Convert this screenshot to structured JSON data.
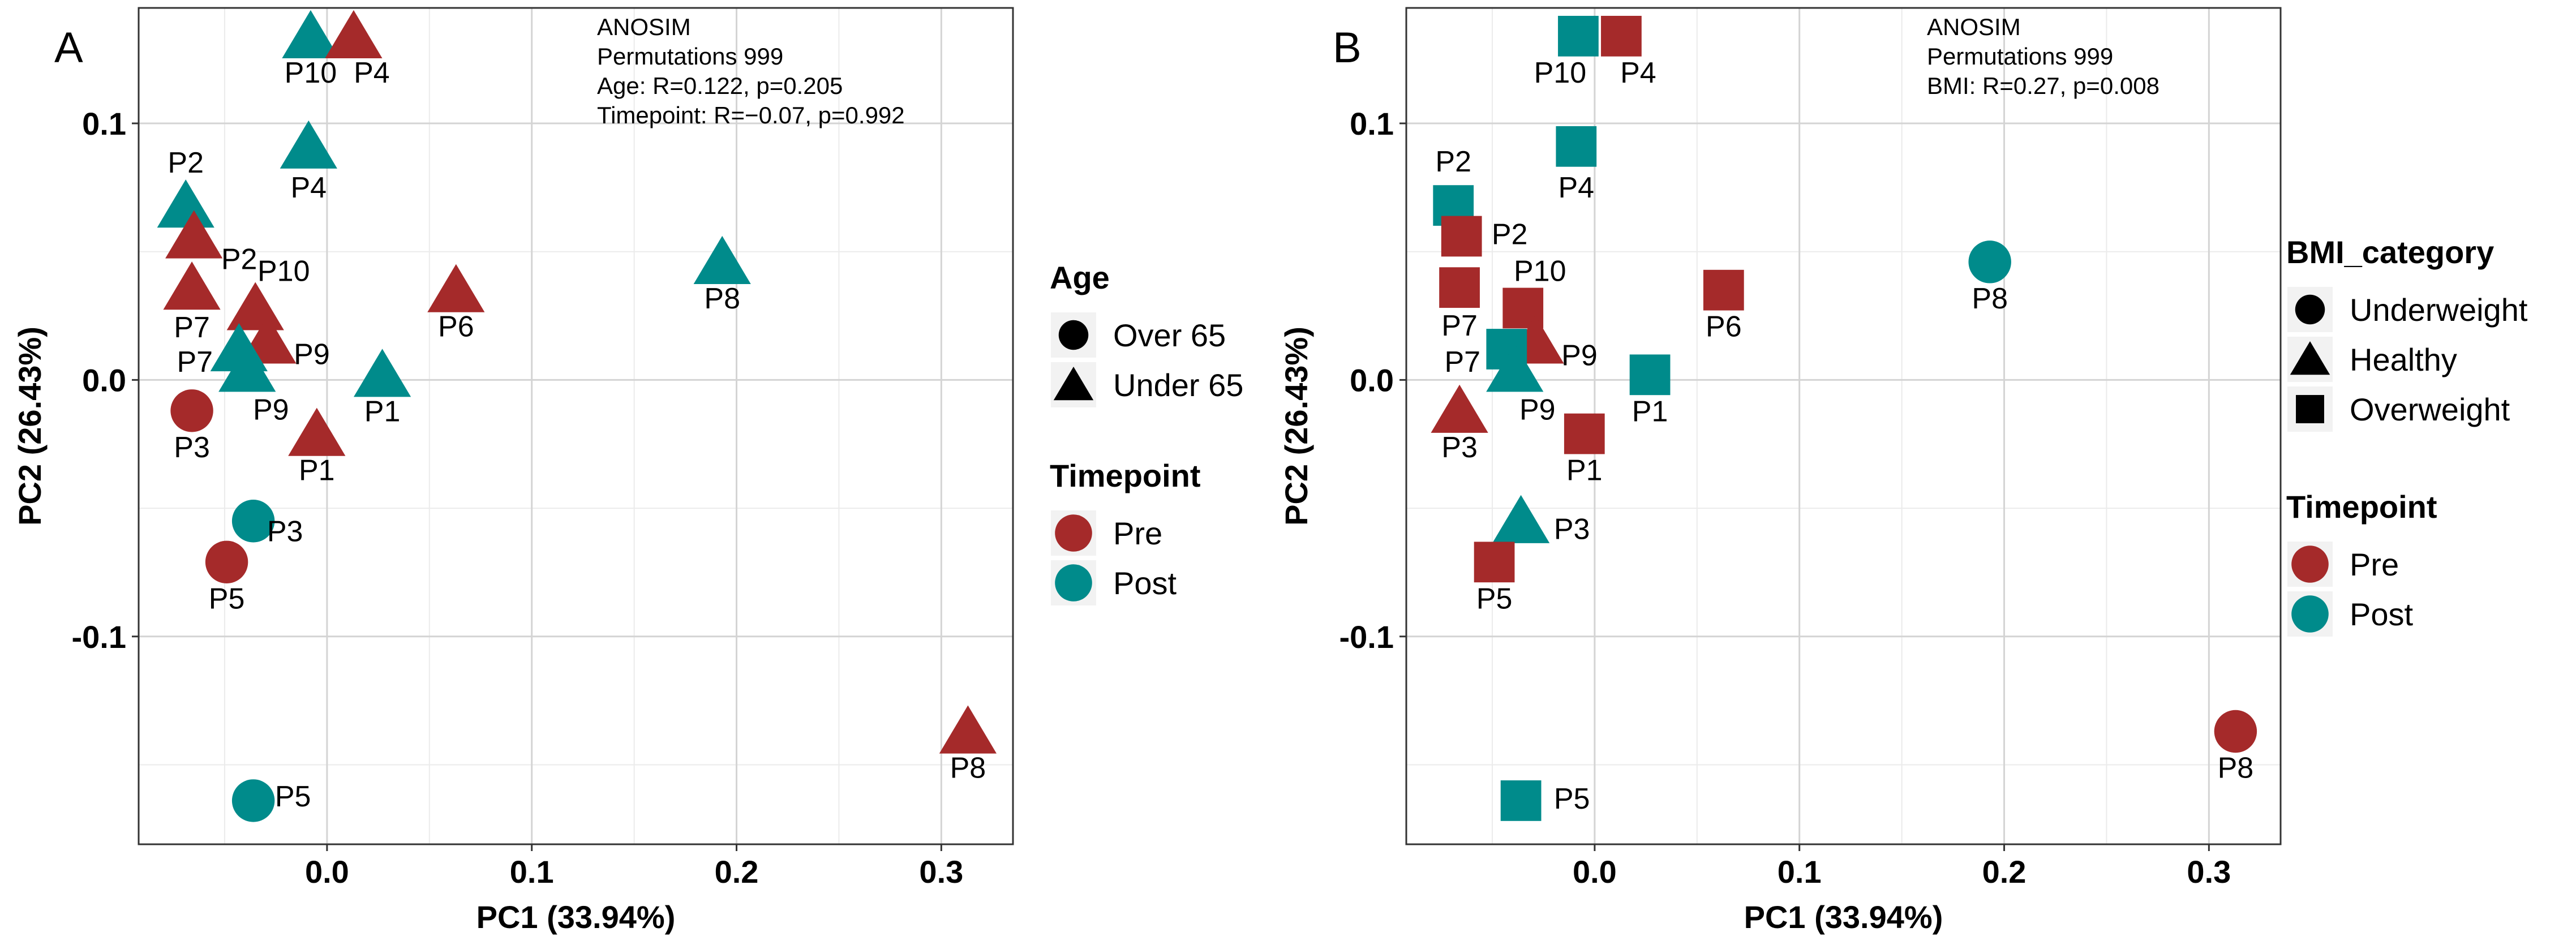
{
  "chart_data": [
    {
      "type": "scatter",
      "panel": "A",
      "xlabel": "PC1 (33.94%)",
      "ylabel": "PC2 (26.43%)",
      "xlim": [
        -0.092,
        0.335
      ],
      "ylim": [
        -0.181,
        0.145
      ],
      "xticks": [
        0.0,
        0.1,
        0.2,
        0.3
      ],
      "xtick_labels": [
        "0.0",
        "0.1",
        "0.2",
        "0.3"
      ],
      "yticks": [
        -0.1,
        0.0,
        0.1
      ],
      "ytick_labels": [
        "-0.1",
        "0.0",
        "0.1"
      ],
      "grid": true,
      "annotation": [
        "ANOSIM",
        "Permutations 999",
        "Age: R=0.122, p=0.205",
        "Timepoint: R=−0.07, p=0.992"
      ],
      "legends": [
        {
          "title": "Age",
          "kind": "shape",
          "entries": [
            {
              "label": "Over 65",
              "shape": "circle"
            },
            {
              "label": "Under 65",
              "shape": "triangle"
            }
          ]
        },
        {
          "title": "Timepoint",
          "kind": "color",
          "entries": [
            {
              "label": "Pre",
              "color": "#A52A2A"
            },
            {
              "label": "Post",
              "color": "#008B8B"
            }
          ]
        }
      ],
      "points": [
        {
          "label": "P10",
          "x": -0.008,
          "y": 0.134,
          "shape": "triangle",
          "group": "Post"
        },
        {
          "label": "P4",
          "x": 0.013,
          "y": 0.134,
          "shape": "triangle",
          "group": "Pre"
        },
        {
          "label": "P4",
          "x": -0.009,
          "y": 0.091,
          "shape": "triangle",
          "group": "Post"
        },
        {
          "label": "P2",
          "x": -0.069,
          "y": 0.068,
          "shape": "triangle",
          "group": "Post"
        },
        {
          "label": "P2",
          "x": -0.065,
          "y": 0.056,
          "shape": "triangle",
          "group": "Pre"
        },
        {
          "label": "P7",
          "x": -0.066,
          "y": 0.036,
          "shape": "triangle",
          "group": "Pre"
        },
        {
          "label": "P10",
          "x": -0.035,
          "y": 0.028,
          "shape": "triangle",
          "group": "Pre"
        },
        {
          "label": "P9",
          "x": -0.029,
          "y": 0.015,
          "shape": "triangle",
          "group": "Pre"
        },
        {
          "label": "P7",
          "x": -0.043,
          "y": 0.012,
          "shape": "triangle",
          "group": "Post"
        },
        {
          "label": "P9",
          "x": -0.039,
          "y": 0.004,
          "shape": "triangle",
          "group": "Post"
        },
        {
          "label": "P6",
          "x": 0.063,
          "y": 0.035,
          "shape": "triangle",
          "group": "Pre"
        },
        {
          "label": "P8",
          "x": 0.193,
          "y": 0.046,
          "shape": "triangle",
          "group": "Post"
        },
        {
          "label": "P1",
          "x": 0.027,
          "y": 0.002,
          "shape": "triangle",
          "group": "Post"
        },
        {
          "label": "P1",
          "x": -0.005,
          "y": -0.021,
          "shape": "triangle",
          "group": "Pre"
        },
        {
          "label": "P3",
          "x": -0.066,
          "y": -0.012,
          "shape": "circle",
          "group": "Pre"
        },
        {
          "label": "P3",
          "x": -0.036,
          "y": -0.055,
          "shape": "circle",
          "group": "Post"
        },
        {
          "label": "P5",
          "x": -0.049,
          "y": -0.071,
          "shape": "circle",
          "group": "Pre"
        },
        {
          "label": "P5",
          "x": -0.036,
          "y": -0.164,
          "shape": "circle",
          "group": "Post"
        },
        {
          "label": "P8",
          "x": 0.313,
          "y": -0.137,
          "shape": "triangle",
          "group": "Pre"
        }
      ]
    },
    {
      "type": "scatter",
      "panel": "B",
      "xlabel": "PC1 (33.94%)",
      "ylabel": "PC2 (26.43%)",
      "xlim": [
        -0.092,
        0.335
      ],
      "ylim": [
        -0.181,
        0.145
      ],
      "xticks": [
        0.0,
        0.1,
        0.2,
        0.3
      ],
      "xtick_labels": [
        "0.0",
        "0.1",
        "0.2",
        "0.3"
      ],
      "yticks": [
        -0.1,
        0.0,
        0.1
      ],
      "ytick_labels": [
        "-0.1",
        "0.0",
        "0.1"
      ],
      "grid": true,
      "annotation": [
        "ANOSIM",
        "Permutations 999",
        "BMI: R=0.27, p=0.008"
      ],
      "legends": [
        {
          "title": "BMI_category",
          "kind": "shape",
          "entries": [
            {
              "label": "Underweight",
              "shape": "circle"
            },
            {
              "label": "Healthy",
              "shape": "triangle"
            },
            {
              "label": "Overweight",
              "shape": "square"
            }
          ]
        },
        {
          "title": "Timepoint",
          "kind": "color",
          "entries": [
            {
              "label": "Pre",
              "color": "#A52A2A"
            },
            {
              "label": "Post",
              "color": "#008B8B"
            }
          ]
        }
      ],
      "points": [
        {
          "label": "P10",
          "x": -0.008,
          "y": 0.134,
          "shape": "square",
          "group": "Post"
        },
        {
          "label": "P4",
          "x": 0.013,
          "y": 0.134,
          "shape": "square",
          "group": "Pre"
        },
        {
          "label": "P4",
          "x": -0.009,
          "y": 0.091,
          "shape": "square",
          "group": "Post"
        },
        {
          "label": "P2",
          "x": -0.069,
          "y": 0.068,
          "shape": "square",
          "group": "Post"
        },
        {
          "label": "P2",
          "x": -0.065,
          "y": 0.056,
          "shape": "square",
          "group": "Pre"
        },
        {
          "label": "P7",
          "x": -0.066,
          "y": 0.036,
          "shape": "square",
          "group": "Pre"
        },
        {
          "label": "P10",
          "x": -0.035,
          "y": 0.028,
          "shape": "square",
          "group": "Pre"
        },
        {
          "label": "P9",
          "x": -0.029,
          "y": 0.015,
          "shape": "triangle",
          "group": "Pre"
        },
        {
          "label": "P7",
          "x": -0.043,
          "y": 0.012,
          "shape": "square",
          "group": "Post"
        },
        {
          "label": "P9",
          "x": -0.039,
          "y": 0.004,
          "shape": "triangle",
          "group": "Post"
        },
        {
          "label": "P6",
          "x": 0.063,
          "y": 0.035,
          "shape": "square",
          "group": "Pre"
        },
        {
          "label": "P8",
          "x": 0.193,
          "y": 0.046,
          "shape": "circle",
          "group": "Post"
        },
        {
          "label": "P1",
          "x": 0.027,
          "y": 0.002,
          "shape": "square",
          "group": "Post"
        },
        {
          "label": "P1",
          "x": -0.005,
          "y": -0.021,
          "shape": "square",
          "group": "Pre"
        },
        {
          "label": "P3",
          "x": -0.066,
          "y": -0.012,
          "shape": "triangle",
          "group": "Pre"
        },
        {
          "label": "P3",
          "x": -0.036,
          "y": -0.055,
          "shape": "triangle",
          "group": "Post"
        },
        {
          "label": "P5",
          "x": -0.049,
          "y": -0.071,
          "shape": "square",
          "group": "Pre"
        },
        {
          "label": "P5",
          "x": -0.036,
          "y": -0.164,
          "shape": "square",
          "group": "Post"
        },
        {
          "label": "P8",
          "x": 0.313,
          "y": -0.137,
          "shape": "circle",
          "group": "Pre"
        }
      ]
    }
  ]
}
